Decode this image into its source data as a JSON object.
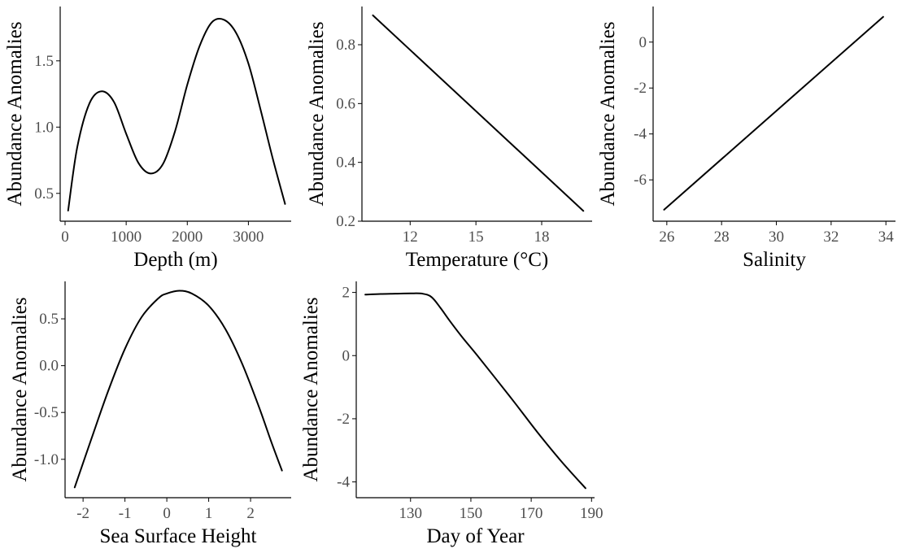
{
  "chart_data": [
    {
      "type": "line",
      "xlabel": "Depth (m)",
      "ylabel": "Abundance Anomalies",
      "xlim": [
        -80,
        3700
      ],
      "ylim": [
        0.29,
        1.91
      ],
      "xticks": [
        0,
        1000,
        2000,
        3000
      ],
      "xtick_labels": [
        "0",
        "1000",
        "2000",
        "3000"
      ],
      "yticks": [
        0.5,
        1.0,
        1.5
      ],
      "ytick_labels": [
        "0.5",
        "1.0",
        "1.5"
      ],
      "grid": false,
      "x": [
        50,
        200,
        400,
        600,
        800,
        1000,
        1200,
        1400,
        1600,
        1800,
        2000,
        2200,
        2400,
        2600,
        2800,
        3000,
        3200,
        3400,
        3600
      ],
      "y": [
        0.37,
        0.85,
        1.18,
        1.27,
        1.19,
        0.95,
        0.73,
        0.65,
        0.72,
        0.97,
        1.32,
        1.61,
        1.79,
        1.81,
        1.71,
        1.48,
        1.13,
        0.76,
        0.42
      ]
    },
    {
      "type": "line",
      "xlabel": "Temperature (°C)",
      "ylabel": "Abundance Anomalies",
      "xlim": [
        9.8,
        20.3
      ],
      "ylim": [
        0.2,
        0.93
      ],
      "xticks": [
        12,
        15,
        18
      ],
      "xtick_labels": [
        "12",
        "15",
        "18"
      ],
      "yticks": [
        0.2,
        0.4,
        0.6,
        0.8
      ],
      "ytick_labels": [
        "0.2",
        "0.4",
        "0.6",
        "0.8"
      ],
      "grid": false,
      "x": [
        10.3,
        19.9
      ],
      "y": [
        0.9,
        0.235
      ]
    },
    {
      "type": "line",
      "xlabel": "Salinity",
      "ylabel": "Abundance Anomalies",
      "xlim": [
        25.5,
        34.35
      ],
      "ylim": [
        -7.8,
        1.55
      ],
      "xticks": [
        26,
        28,
        30,
        32,
        34
      ],
      "xtick_labels": [
        "26",
        "28",
        "30",
        "32",
        "34"
      ],
      "yticks": [
        -6,
        -4,
        -2,
        0
      ],
      "ytick_labels": [
        "-6",
        "-4",
        "-2",
        "0"
      ],
      "grid": false,
      "x": [
        25.9,
        33.9
      ],
      "y": [
        -7.3,
        1.1
      ]
    },
    {
      "type": "line",
      "xlabel": "Sea Surface Height",
      "ylabel": "Abundance Anomalies",
      "xlim": [
        -2.43,
        2.97
      ],
      "ylim": [
        -1.41,
        0.9
      ],
      "xticks": [
        -2,
        -1,
        0,
        1,
        2
      ],
      "xtick_labels": [
        "-2",
        "-1",
        "0",
        "1",
        "2"
      ],
      "yticks": [
        -1.0,
        -0.5,
        0.0,
        0.5
      ],
      "ytick_labels": [
        "-1.0",
        "-0.5",
        "0.0",
        "0.5"
      ],
      "grid": false,
      "x": [
        -2.2,
        -1.8,
        -1.4,
        -1.0,
        -0.6,
        -0.2,
        0.0,
        0.3,
        0.6,
        1.0,
        1.4,
        1.8,
        2.2,
        2.5,
        2.75
      ],
      "y": [
        -1.3,
        -0.78,
        -0.27,
        0.18,
        0.52,
        0.72,
        0.77,
        0.8,
        0.77,
        0.64,
        0.39,
        0.02,
        -0.44,
        -0.82,
        -1.12
      ]
    },
    {
      "type": "line",
      "xlabel": "Day of Year",
      "ylabel": "Abundance Anomalies",
      "xlim": [
        112,
        191
      ],
      "ylim": [
        -4.5,
        2.35
      ],
      "xticks": [
        130,
        150,
        170,
        190
      ],
      "xtick_labels": [
        "130",
        "150",
        "170",
        "190"
      ],
      "yticks": [
        -4,
        -2,
        0,
        2
      ],
      "ytick_labels": [
        "-4",
        "-2",
        "0",
        "2"
      ],
      "grid": false,
      "x": [
        115,
        120,
        125,
        130,
        134,
        137,
        140,
        143,
        147,
        152,
        158,
        165,
        172,
        180,
        188
      ],
      "y": [
        1.93,
        1.95,
        1.96,
        1.97,
        1.96,
        1.85,
        1.5,
        1.1,
        0.6,
        0.02,
        -0.7,
        -1.55,
        -2.42,
        -3.35,
        -4.2
      ]
    }
  ]
}
